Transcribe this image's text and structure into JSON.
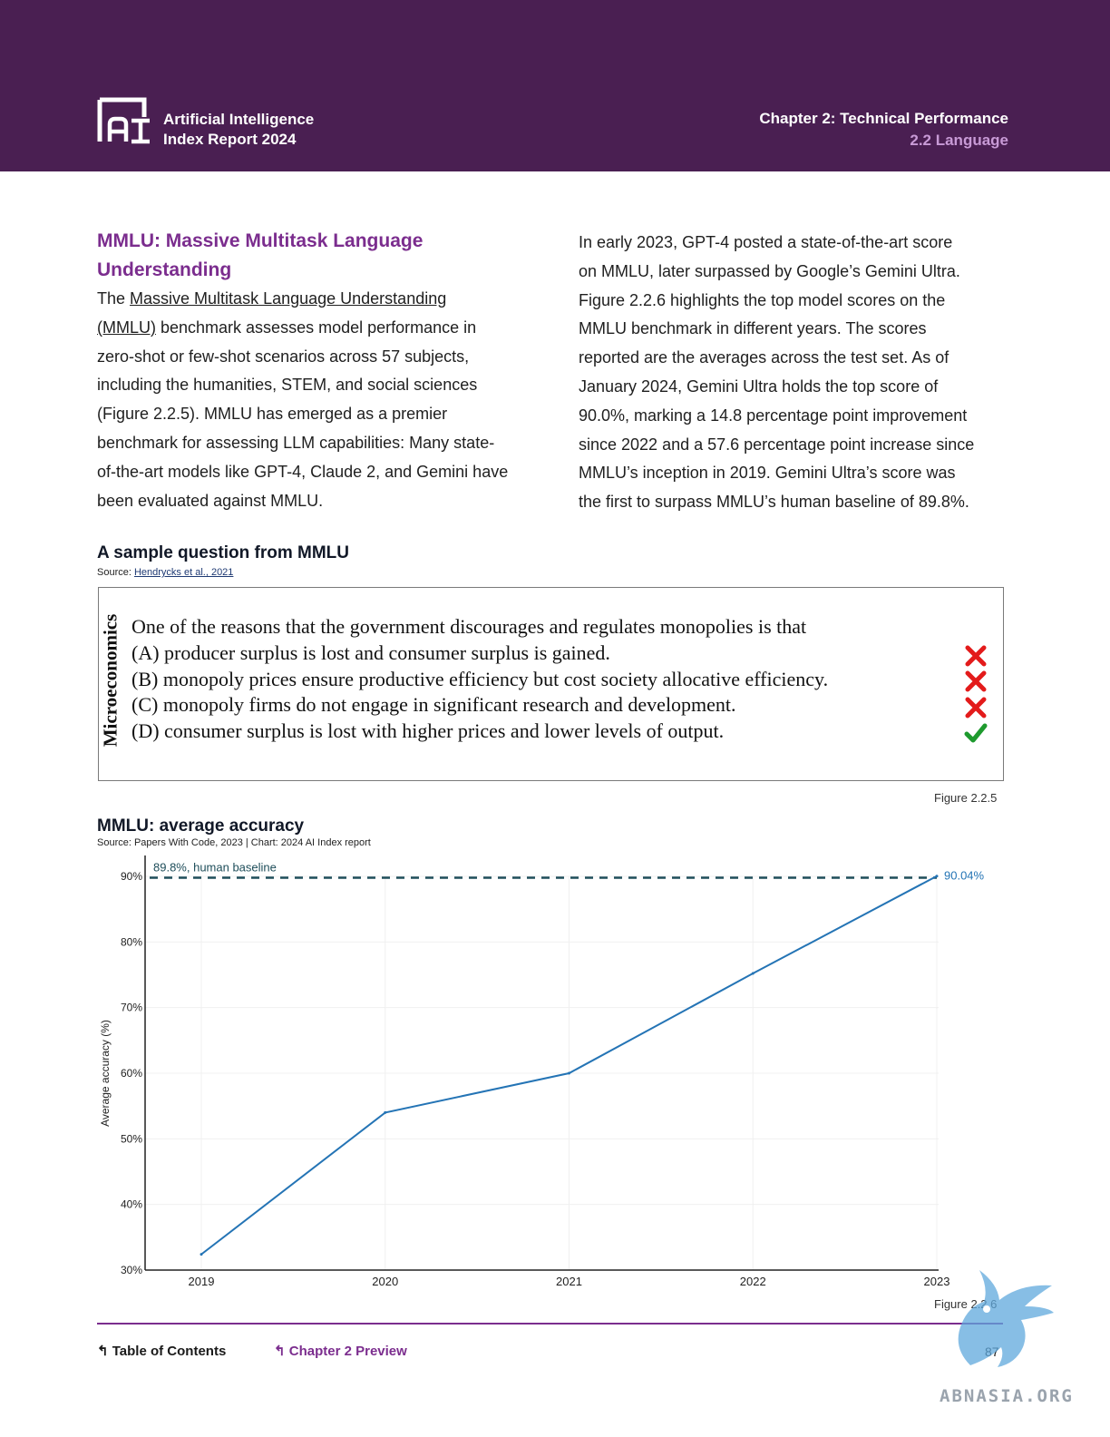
{
  "header": {
    "brand_line1": "Artificial Intelligence",
    "brand_line2": "Index Report 2024",
    "chapter": "Chapter 2: Technical Performance",
    "section": "2.2 Language",
    "logo_text": "AI"
  },
  "left_column": {
    "title_line1": "MMLU: Massive Multitask Language",
    "title_line2": "Understanding",
    "p_lines": [
      "The ",
      "Massive Multitask Language Understanding ",
      "(MMLU)",
      " benchmark assesses model performance in",
      "zero-shot or few-shot scenarios across 57 subjects,",
      "including the humanities, STEM, and social sciences",
      "(Figure 2.2.5). MMLU has emerged as a premier",
      "benchmark for assessing LLM capabilities: Many state-",
      "of-the-art models like GPT-4, Claude 2, and Gemini have",
      "been evaluated against MMLU."
    ]
  },
  "right_column": {
    "lines": [
      "In early 2023, GPT-4 posted a state-of-the-art score",
      "on MMLU, later surpassed by Google’s Gemini Ultra.",
      "Figure 2.2.6 highlights the top model scores on the",
      "MMLU benchmark in different years. The scores",
      "reported are the averages across the test set. As of",
      "January 2024, Gemini Ultra holds the top score of",
      "90.0%, marking a 14.8 percentage point improvement",
      "since 2022 and a 57.6 percentage point increase since",
      "MMLU’s inception in 2019. Gemini Ultra’s score was",
      "the first to surpass MMLU’s human baseline of 89.8%."
    ]
  },
  "figure1": {
    "title": "A sample question from MMLU",
    "source_prefix": "Source: ",
    "source_link": "Hendrycks et al., 2021",
    "subject": "Microeconomics",
    "question": "One of the reasons that the government discourages and regulates monopolies is that",
    "options": [
      {
        "text": "(A) producer surplus is lost and consumer surplus is gained.",
        "correct": false
      },
      {
        "text": "(B) monopoly prices ensure productive efficiency but cost society allocative efficiency.",
        "correct": false
      },
      {
        "text": "(C) monopoly firms do not engage in significant research and development.",
        "correct": false
      },
      {
        "text": "(D) consumer surplus is lost with higher prices and lower levels of output.",
        "correct": true
      }
    ],
    "number": "Figure 2.2.5",
    "colors": {
      "wrong": "#e31b1b",
      "right": "#1e9a2e"
    }
  },
  "figure2": {
    "title": "MMLU: average accuracy",
    "source": "Source: Papers With Code, 2023 | Chart: 2024 AI Index report",
    "number": "Figure 2.2.6"
  },
  "chart_data": {
    "type": "line",
    "title": "MMLU: average accuracy",
    "xlabel": "",
    "ylabel": "Average accuracy (%)",
    "x": [
      "2019",
      "2020",
      "2021",
      "2022",
      "2023"
    ],
    "series": [
      {
        "values": [
          32.4,
          54.0,
          60.0,
          75.2,
          90.04
        ],
        "color": "#2474b5"
      }
    ],
    "ylim": [
      30,
      90
    ],
    "yticks": [
      "30%",
      "40%",
      "50%",
      "60%",
      "70%",
      "80%",
      "90%"
    ],
    "reference_line": {
      "value": 89.8,
      "label": "89.8%, human baseline",
      "color": "#1f4e5a",
      "style": "dashed"
    },
    "end_label": "90.04%",
    "grid": true
  },
  "footer": {
    "toc": "Table of Contents",
    "chapter_preview": "Chapter 2 Preview",
    "page_number": "87"
  },
  "watermark": {
    "text": "ABNASIA.ORG",
    "color": "#5fa8dc"
  }
}
